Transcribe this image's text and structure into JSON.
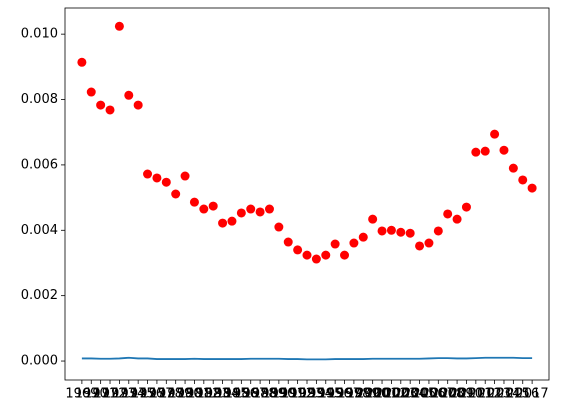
{
  "chart_data": {
    "type": "scatter",
    "categories": [
      "1969",
      "1970",
      "1971",
      "1972",
      "1973",
      "1974",
      "1975",
      "1976",
      "1977",
      "1978",
      "1979",
      "1980",
      "1981",
      "1982",
      "1983",
      "1984",
      "1985",
      "1986",
      "1987",
      "1988",
      "1989",
      "1990",
      "1991",
      "1992",
      "1993",
      "1994",
      "1995",
      "1996",
      "1997",
      "1998",
      "1999",
      "2000",
      "2001",
      "2002",
      "2003",
      "2004",
      "2005",
      "2006",
      "2007",
      "2008",
      "2009",
      "2010",
      "2011",
      "2012",
      "2013",
      "2014",
      "2015",
      "2016",
      "2017"
    ],
    "series": [
      {
        "type": "scatter",
        "color": "#ff0000",
        "values": [
          0.00914,
          0.00823,
          0.00783,
          0.00768,
          0.01024,
          0.00813,
          0.00783,
          0.00572,
          0.0056,
          0.00547,
          0.00511,
          0.00566,
          0.00486,
          0.00465,
          0.00474,
          0.00422,
          0.00428,
          0.00453,
          0.00465,
          0.00456,
          0.00465,
          0.0041,
          0.00364,
          0.0034,
          0.00324,
          0.00312,
          0.00324,
          0.00358,
          0.00324,
          0.00361,
          0.00379,
          0.00434,
          0.00398,
          0.004,
          0.00394,
          0.00391,
          0.00352,
          0.00361,
          0.00398,
          0.0045,
          0.00434,
          0.00471,
          0.00639,
          0.00642,
          0.00694,
          0.00645,
          0.0059,
          0.00554,
          0.00529
        ]
      },
      {
        "type": "line",
        "color": "#1f77b4",
        "values": [
          8e-05,
          8e-05,
          7e-05,
          7e-05,
          8e-05,
          0.0001,
          8e-05,
          8e-05,
          6e-05,
          6e-05,
          6e-05,
          6e-05,
          7e-05,
          6e-05,
          6e-05,
          6e-05,
          6e-05,
          6e-05,
          7e-05,
          7e-05,
          7e-05,
          7e-05,
          6e-05,
          6e-05,
          5e-05,
          5e-05,
          5e-05,
          6e-05,
          6e-05,
          6e-05,
          6e-05,
          7e-05,
          7e-05,
          7e-05,
          7e-05,
          7e-05,
          7e-05,
          8e-05,
          9e-05,
          9e-05,
          8e-05,
          8e-05,
          9e-05,
          0.0001,
          0.0001,
          0.0001,
          0.0001,
          9e-05,
          9e-05
        ]
      }
    ],
    "ylim": [
      -0.00058,
      0.0108
    ],
    "yticks": [
      {
        "value": 0,
        "label": "0.000"
      },
      {
        "value": 0.002,
        "label": "0.002"
      },
      {
        "value": 0.004,
        "label": "0.004"
      },
      {
        "value": 0.006,
        "label": "0.006"
      },
      {
        "value": 0.008,
        "label": "0.008"
      },
      {
        "value": 0.01,
        "label": "0.010"
      }
    ]
  }
}
